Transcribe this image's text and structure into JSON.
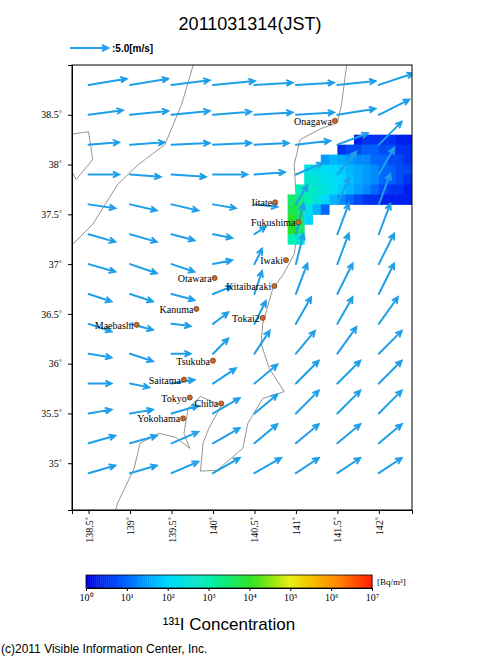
{
  "chart_data": {
    "type": "map",
    "title": "2011031314(JST)",
    "xlim": [
      138.3,
      142.4
    ],
    "ylim": [
      34.53,
      39.0
    ],
    "xticks": [
      {
        "value": 138.5,
        "label": "138.5˚"
      },
      {
        "value": 139,
        "label": "139˚"
      },
      {
        "value": 139.5,
        "label": "139.5˚"
      },
      {
        "value": 140,
        "label": "140˚"
      },
      {
        "value": 140.5,
        "label": "140.5˚"
      },
      {
        "value": 141,
        "label": "141˚"
      },
      {
        "value": 141.5,
        "label": "141.5˚"
      },
      {
        "value": 142,
        "label": "142˚"
      }
    ],
    "yticks": [
      {
        "value": 35,
        "label": "35˚"
      },
      {
        "value": 35.5,
        "label": "35.5˚"
      },
      {
        "value": 36,
        "label": "36˚"
      },
      {
        "value": 36.5,
        "label": "36.5˚"
      },
      {
        "value": 37,
        "label": "37˚"
      },
      {
        "value": 37.5,
        "label": "37.5˚"
      },
      {
        "value": 38,
        "label": "38˚"
      },
      {
        "value": 38.5,
        "label": "38.5˚"
      }
    ],
    "wind": {
      "reference": {
        "value": 5.0,
        "label": ":5.0[m/s]"
      },
      "lons": [
        138.5,
        139.0,
        139.5,
        140.0,
        140.5,
        141.0,
        141.5,
        142.0
      ],
      "lats": [
        38.8,
        38.5,
        38.2,
        37.9,
        37.6,
        37.3,
        37.0,
        36.7,
        36.4,
        36.1,
        35.8,
        35.5,
        35.2,
        34.9
      ],
      "u": [
        [
          5,
          5,
          5,
          5.5,
          5,
          5,
          5,
          4.5
        ],
        [
          4.5,
          5,
          5,
          5,
          5,
          5,
          5,
          4
        ],
        [
          4,
          4.5,
          5,
          5,
          4.5,
          4.5,
          4,
          3
        ],
        [
          4,
          4,
          4.5,
          4.5,
          4,
          3.5,
          2.5,
          2
        ],
        [
          3.5,
          3.5,
          3.5,
          3,
          3,
          1.5,
          1.5,
          1.5
        ],
        [
          3.5,
          3.5,
          3,
          2.5,
          1.5,
          1,
          1.5,
          1.5
        ],
        [
          3.5,
          3.5,
          3,
          2.5,
          1,
          1,
          1.5,
          2
        ],
        [
          3,
          3,
          3,
          2.5,
          1,
          1.5,
          2,
          2
        ],
        [
          3,
          3,
          2.5,
          2,
          1.5,
          2,
          2,
          2.5
        ],
        [
          3,
          3,
          2.5,
          2,
          2,
          2.5,
          2.5,
          3
        ],
        [
          3,
          2.5,
          3,
          3,
          3,
          3,
          3,
          3
        ],
        [
          3,
          3,
          3.5,
          3.5,
          3,
          3,
          3,
          3
        ],
        [
          3.5,
          3.5,
          3.5,
          3.5,
          3,
          3,
          3,
          3
        ],
        [
          3.5,
          3.5,
          3.5,
          3.5,
          3.5,
          3,
          3,
          3
        ]
      ],
      "v": [
        [
          0.8,
          0.8,
          0.6,
          0.5,
          0.3,
          0.3,
          0.5,
          1.5
        ],
        [
          0.6,
          0.5,
          0.5,
          0.4,
          0.3,
          0.3,
          0.8,
          2
        ],
        [
          0.3,
          0.3,
          0.2,
          0.2,
          0.2,
          0.5,
          1.5,
          3
        ],
        [
          0,
          -0.3,
          -0.3,
          0,
          0.3,
          1.5,
          3,
          3.5
        ],
        [
          -0.5,
          -0.8,
          -0.8,
          -0.5,
          -0.3,
          2.5,
          3.5,
          4
        ],
        [
          -1,
          -1,
          -0.8,
          -0.5,
          1,
          4,
          4,
          4
        ],
        [
          -1,
          -1.2,
          -1,
          0.5,
          2,
          4,
          4,
          4
        ],
        [
          -1,
          -1,
          -0.8,
          1,
          3,
          4,
          4,
          4
        ],
        [
          -1,
          -0.8,
          -0.3,
          1.5,
          3,
          3.5,
          3.5,
          3.5
        ],
        [
          -0.5,
          -1,
          0,
          2,
          3,
          3,
          3.5,
          3
        ],
        [
          0,
          -0.5,
          0.5,
          2,
          2.5,
          3,
          3,
          3
        ],
        [
          0.5,
          0.5,
          1,
          2,
          2.5,
          3,
          3,
          3
        ],
        [
          1,
          1,
          1.5,
          2,
          2.5,
          2.5,
          2.5,
          2.5
        ],
        [
          1,
          1,
          1.5,
          2,
          2,
          2,
          2,
          2
        ]
      ]
    },
    "plume": {
      "lons": [
        140.95,
        141.05,
        141.15,
        141.25,
        141.35,
        141.45,
        141.55,
        141.65,
        141.75,
        141.85,
        141.95,
        142.05,
        142.15,
        142.25,
        142.35
      ],
      "lats": [
        38.25,
        38.15,
        38.05,
        37.95,
        37.85,
        37.75,
        37.65,
        37.55,
        37.45,
        37.35,
        37.25
      ],
      "values": [
        [
          null,
          null,
          null,
          null,
          null,
          null,
          null,
          null,
          2,
          3,
          3,
          3,
          3,
          2,
          2
        ],
        [
          null,
          null,
          null,
          null,
          null,
          null,
          3,
          5,
          5,
          8,
          8,
          5,
          5,
          3,
          3
        ],
        [
          null,
          null,
          null,
          null,
          30,
          50,
          40,
          30,
          20,
          20,
          10,
          10,
          5,
          5,
          3
        ],
        [
          null,
          null,
          200,
          200,
          150,
          100,
          80,
          50,
          40,
          30,
          20,
          10,
          8,
          5,
          5
        ],
        [
          null,
          null,
          400,
          300,
          200,
          150,
          100,
          60,
          40,
          30,
          20,
          10,
          8,
          5,
          3
        ],
        [
          null,
          800,
          600,
          400,
          300,
          150,
          80,
          50,
          30,
          20,
          10,
          5,
          3,
          3,
          2
        ],
        [
          3000,
          2000,
          800,
          300,
          100,
          50,
          20,
          10,
          5,
          3,
          3,
          2,
          2,
          2,
          2
        ],
        [
          5000,
          3000,
          200,
          50,
          10,
          null,
          null,
          null,
          null,
          null,
          null,
          null,
          null,
          null,
          null
        ],
        [
          10000,
          5000,
          100,
          null,
          null,
          null,
          null,
          null,
          null,
          null,
          null,
          null,
          null,
          null,
          null
        ],
        [
          10000,
          3000,
          null,
          null,
          null,
          null,
          null,
          null,
          null,
          null,
          null,
          null,
          null,
          null,
          null
        ],
        [
          1000,
          300,
          null,
          null,
          null,
          null,
          null,
          null,
          null,
          null,
          null,
          null,
          null,
          null,
          null
        ]
      ]
    },
    "colorbar": {
      "title": "¹³¹I Concentration",
      "unit": "[Bq/m³]",
      "range": [
        1,
        10000000
      ],
      "ticks": [
        {
          "value": 1,
          "label": "10⁰"
        },
        {
          "value": 10,
          "label": "10¹"
        },
        {
          "value": 100,
          "label": "10²"
        },
        {
          "value": 1000,
          "label": "10³"
        },
        {
          "value": 10000,
          "label": "10⁴"
        },
        {
          "value": 100000,
          "label": "10⁵"
        },
        {
          "value": 1000000,
          "label": "10⁶"
        },
        {
          "value": 10000000,
          "label": "10⁷"
        }
      ]
    },
    "cities": [
      {
        "name": "Onagawa",
        "lon": 141.47,
        "lat": 38.44
      },
      {
        "name": "Iitate",
        "lon": 140.75,
        "lat": 37.62
      },
      {
        "name": "Fukushima",
        "lon": 141.03,
        "lat": 37.42
      },
      {
        "name": "Iwaki",
        "lon": 140.88,
        "lat": 37.04
      },
      {
        "name": "Otawara",
        "lon": 140.02,
        "lat": 36.86
      },
      {
        "name": "Kitaibaraki",
        "lon": 140.74,
        "lat": 36.78
      },
      {
        "name": "Kanuma",
        "lon": 139.8,
        "lat": 36.55
      },
      {
        "name": "Maebashi",
        "lon": 139.08,
        "lat": 36.39
      },
      {
        "name": "Tokai2",
        "lon": 140.6,
        "lat": 36.46
      },
      {
        "name": "Tsukuba",
        "lon": 140.0,
        "lat": 36.03
      },
      {
        "name": "Saitama",
        "lon": 139.65,
        "lat": 35.84
      },
      {
        "name": "Tokyo",
        "lon": 139.72,
        "lat": 35.66
      },
      {
        "name": "Chiba",
        "lon": 140.1,
        "lat": 35.6
      },
      {
        "name": "Yokohama",
        "lon": 139.64,
        "lat": 35.45
      }
    ],
    "footer": "(c)2011 Visible Information Center, Inc."
  }
}
